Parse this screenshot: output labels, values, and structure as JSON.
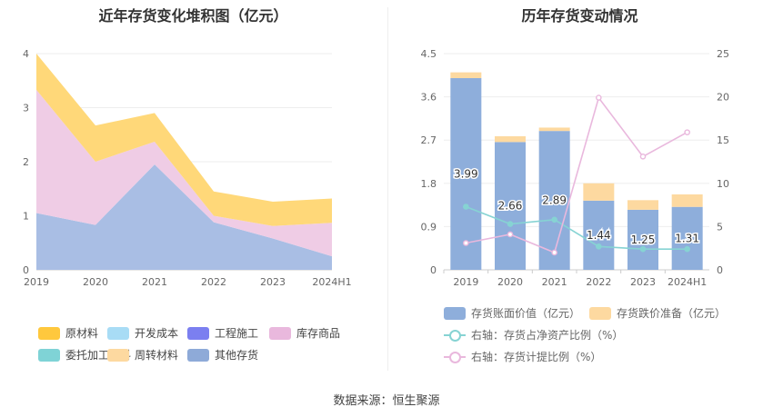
{
  "chart_data": [
    {
      "type": "area",
      "stacked": true,
      "title": "近年存货变化堆积图（亿元）",
      "categories": [
        "2019",
        "2020",
        "2021",
        "2022",
        "2023",
        "2024H1"
      ],
      "ylim": [
        0,
        4
      ],
      "yticks": [
        "0",
        "1",
        "2",
        "3",
        "4"
      ],
      "legend_position": "bottom",
      "legend": [
        {
          "name": "原材料",
          "color": "#FFC83D"
        },
        {
          "name": "开发成本",
          "color": "#A8DCF5"
        },
        {
          "name": "工程施工",
          "color": "#7B7FF0"
        },
        {
          "name": "库存商品",
          "color": "#E9B8DD"
        },
        {
          "name": "委托加工材料",
          "color": "#7FD3D6"
        },
        {
          "name": "周转材料",
          "color": "#FDD9A0"
        },
        {
          "name": "其他存货",
          "color": "#8EAAD8"
        }
      ],
      "series": [
        {
          "name": "其他存货",
          "color": "#A9BEE4",
          "values": [
            1.05,
            0.83,
            1.95,
            0.88,
            0.58,
            0.25
          ]
        },
        {
          "name": "库存商品",
          "color": "#EFCCE5",
          "values": [
            2.28,
            1.17,
            0.42,
            0.12,
            0.23,
            0.62
          ]
        },
        {
          "name": "原材料",
          "color": "#FFD879",
          "values": [
            0.67,
            0.67,
            0.53,
            0.45,
            0.45,
            0.45
          ]
        }
      ]
    },
    {
      "type": "bar+line",
      "title": "历年存货变动情况",
      "categories": [
        "2019",
        "2020",
        "2021",
        "2022",
        "2023",
        "2024H1"
      ],
      "left_ylim": [
        0,
        4.5
      ],
      "left_yticks": [
        "0",
        "0.9",
        "1.8",
        "2.7",
        "3.6",
        "4.5"
      ],
      "right_ylim": [
        0,
        25
      ],
      "right_yticks": [
        "0",
        "5",
        "10",
        "15",
        "20",
        "25"
      ],
      "legend_position": "bottom",
      "bars": [
        {
          "name": "存货账面价值（亿元）",
          "color": "#8EAEDB",
          "values": [
            3.99,
            2.66,
            2.89,
            1.44,
            1.25,
            1.31
          ],
          "labels": [
            "3.99",
            "2.66",
            "2.89",
            "1.44",
            "1.25",
            "1.31"
          ]
        },
        {
          "name": "存货跌价准备（亿元）",
          "color": "#FDD9A0",
          "values": [
            0.12,
            0.12,
            0.07,
            0.36,
            0.2,
            0.26
          ]
        }
      ],
      "lines": [
        {
          "name": "右轴：存货占净资产比例（%）",
          "color": "#86D3D3",
          "values": [
            7.3,
            5.3,
            5.8,
            2.7,
            2.4,
            2.4
          ]
        },
        {
          "name": "右轴：存货计提比例（%）",
          "color": "#E9B8DD",
          "values": [
            3.1,
            4.1,
            2.0,
            19.9,
            13.1,
            15.9
          ]
        }
      ]
    }
  ],
  "source": "数据来源：恒生聚源"
}
